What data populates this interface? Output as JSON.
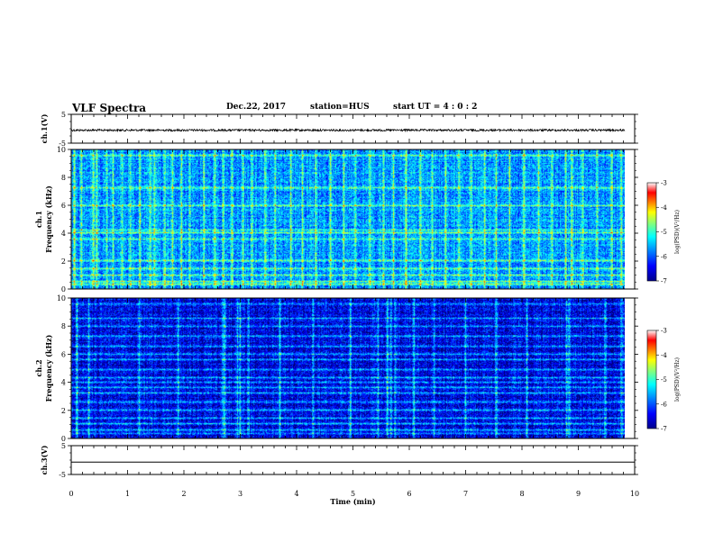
{
  "header": {
    "title": "VLF Spectra",
    "date": "Dec.22, 2017",
    "station": "station=HUS",
    "start": "start  UT =   4 : 0  : 2"
  },
  "colors": {
    "spectrogram_scale": [
      "#00008b",
      "#0000ff",
      "#0080ff",
      "#00ffff",
      "#80ff80",
      "#ffff00",
      "#ff8000",
      "#ff0000",
      "#ffffff"
    ]
  },
  "chart_data": [
    {
      "type": "line",
      "id": "ch1-waveform",
      "ylabel": "ch.1(V)",
      "ylim": [
        -5,
        5
      ],
      "y_ticks": [
        "5",
        "-5"
      ],
      "xlim": [
        0,
        10
      ],
      "x_units": "min",
      "level_v": -0.5,
      "noise_amplitude_v": 0.35
    },
    {
      "type": "heatmap",
      "id": "ch1-spectrogram",
      "ylabel_channel": "ch.1",
      "ylabel": "Frequency (kHz)",
      "ylim": [
        0,
        10
      ],
      "y_ticks": [
        "0",
        "2",
        "4",
        "6",
        "8",
        "10"
      ],
      "xlim": [
        0,
        10
      ],
      "data_end_min": 9.83,
      "colorbar": {
        "label": "log(PSD)(V²/Hz)",
        "range": [
          -7,
          -3
        ],
        "ticks": [
          "-3",
          "-4",
          "-5",
          "-6",
          "-7"
        ]
      },
      "mean_log_psd": -5.7,
      "horizontal_lines_khz": [
        0.3,
        0.5,
        1.0,
        1.4,
        2.0,
        3.6,
        4.0,
        4.2,
        6.0,
        7.3,
        9.6
      ],
      "vertical_bursts_min": [
        0.05,
        0.18,
        0.38,
        0.45,
        0.62,
        0.73,
        0.9,
        1.05,
        1.22,
        1.4,
        1.48,
        1.65,
        1.8,
        1.95,
        2.1,
        2.35,
        2.55,
        2.7,
        2.85,
        3.05,
        3.2,
        3.45,
        3.62,
        3.9,
        4.1,
        4.35,
        4.6,
        4.85,
        5.05,
        5.3,
        5.55,
        5.72,
        5.95,
        6.2,
        6.42,
        6.65,
        6.9,
        7.1,
        7.35,
        7.55,
        7.8,
        8.05,
        8.3,
        8.55,
        8.78,
        8.9,
        9.1,
        9.35,
        9.6,
        9.78
      ]
    },
    {
      "type": "heatmap",
      "id": "ch2-spectrogram",
      "ylabel_channel": "ch.2",
      "ylabel": "Frequency (kHz)",
      "ylim": [
        0,
        10
      ],
      "y_ticks": [
        "0",
        "2",
        "4",
        "6",
        "8",
        "10"
      ],
      "xlim": [
        0,
        10
      ],
      "data_end_min": 9.83,
      "colorbar": {
        "label": "log(PSD)(V²/Hz)",
        "range": [
          -7,
          -3
        ],
        "ticks": [
          "-3",
          "-4",
          "-5",
          "-6",
          "-7"
        ]
      },
      "mean_log_psd": -6.5,
      "horizontal_lines_khz": [
        0.3,
        0.6,
        1.0,
        1.4,
        2.0,
        2.6,
        3.2,
        3.6,
        4.0,
        4.3,
        4.9,
        5.6,
        6.0,
        6.6,
        7.3,
        8.0,
        8.6,
        9.6
      ],
      "vertical_bursts_min": [
        0.1,
        0.3,
        1.2,
        1.9,
        2.7,
        2.73,
        2.95,
        3.0,
        3.15,
        3.7,
        4.3,
        4.95,
        5.45,
        5.62,
        5.68,
        5.75,
        6.1,
        6.45,
        7.0,
        7.55,
        8.1,
        8.8,
        8.85,
        9.5,
        9.78
      ]
    },
    {
      "type": "line",
      "id": "ch3-waveform",
      "ylabel": "ch.3(V)",
      "ylim": [
        -5,
        5
      ],
      "y_ticks": [
        "5",
        "-5"
      ],
      "xlim": [
        0,
        10
      ],
      "x_ticks": [
        "0",
        "1",
        "2",
        "3",
        "4",
        "5",
        "6",
        "7",
        "8",
        "9",
        "10"
      ],
      "xlabel": "Time (min)",
      "level_v": -0.7,
      "noise_amplitude_v": 0.0
    }
  ]
}
